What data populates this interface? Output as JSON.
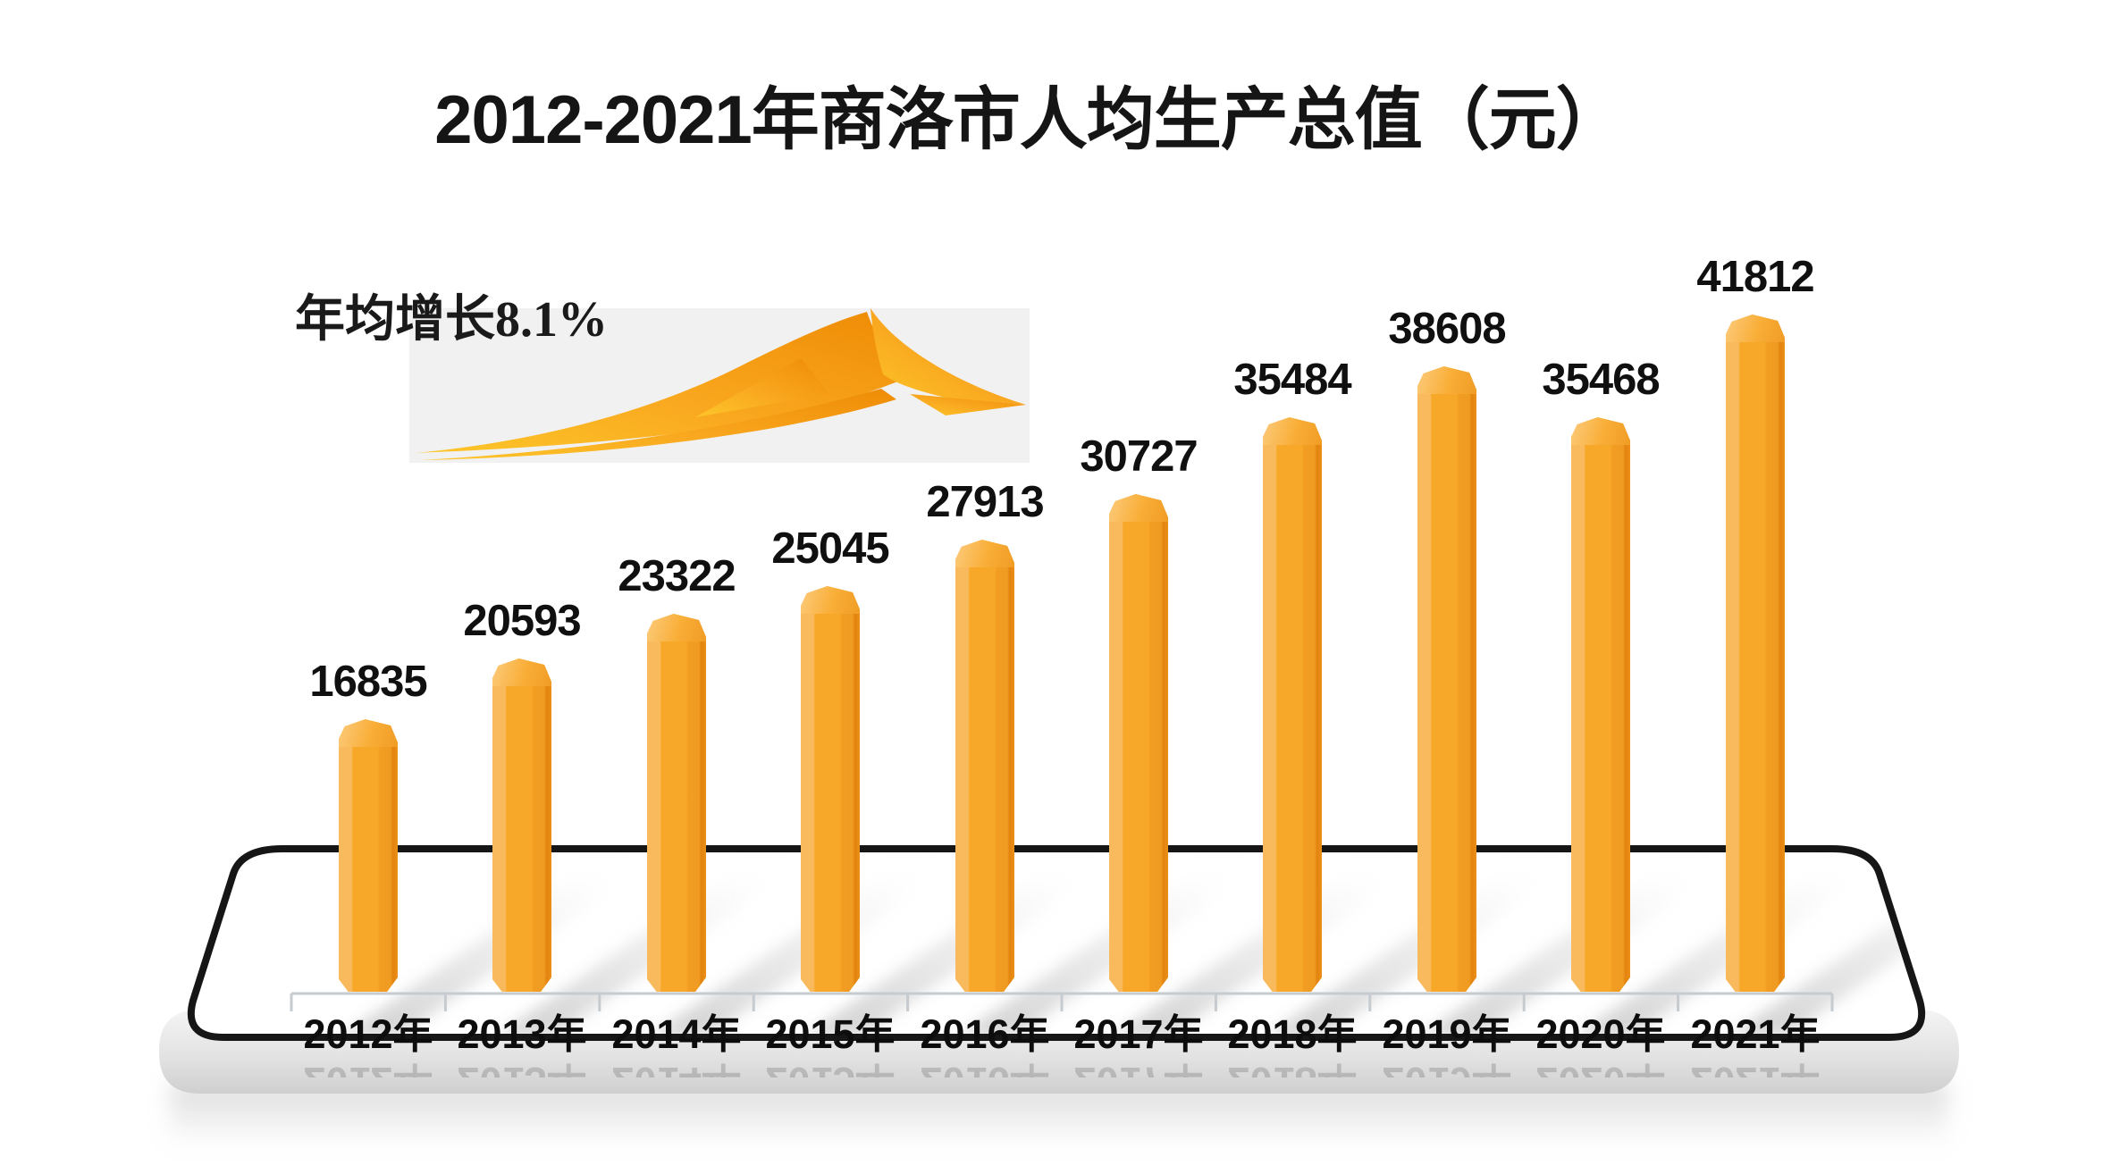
{
  "title": "2012-2021年商洛市人均生产总值（元）",
  "annotation": {
    "label": "年均增长8.1%"
  },
  "chart_data": {
    "type": "bar",
    "title": "2012-2021年商洛市人均生产总值（元）",
    "annotation": "年均增长8.1%",
    "categories": [
      "2012年",
      "2013年",
      "2014年",
      "2015年",
      "2016年",
      "2017年",
      "2018年",
      "2019年",
      "2020年",
      "2021年"
    ],
    "values": [
      16835,
      20593,
      23322,
      25045,
      27913,
      30727,
      35484,
      38608,
      35468,
      41812
    ],
    "unit": "元",
    "ylim": [
      0,
      45000
    ],
    "grid": false,
    "legend": "none",
    "data_labels": true,
    "bar_color": "#f8a829"
  },
  "colors": {
    "bar_main": "#f8a829",
    "bar_highlight": "#f9ba5e",
    "bar_shade": "#ef9b22",
    "bar_edge": "#e2830f",
    "cap_light": "#fccb7d",
    "outline": "#161616",
    "text": "#101010",
    "baseline": "#c6cbd0",
    "arrow_box_bg": "#f1f1f2",
    "arrow_gradient_start": "#fdc62a",
    "arrow_gradient_end": "#ef8b05",
    "platform_base": "#d2d2d2"
  }
}
